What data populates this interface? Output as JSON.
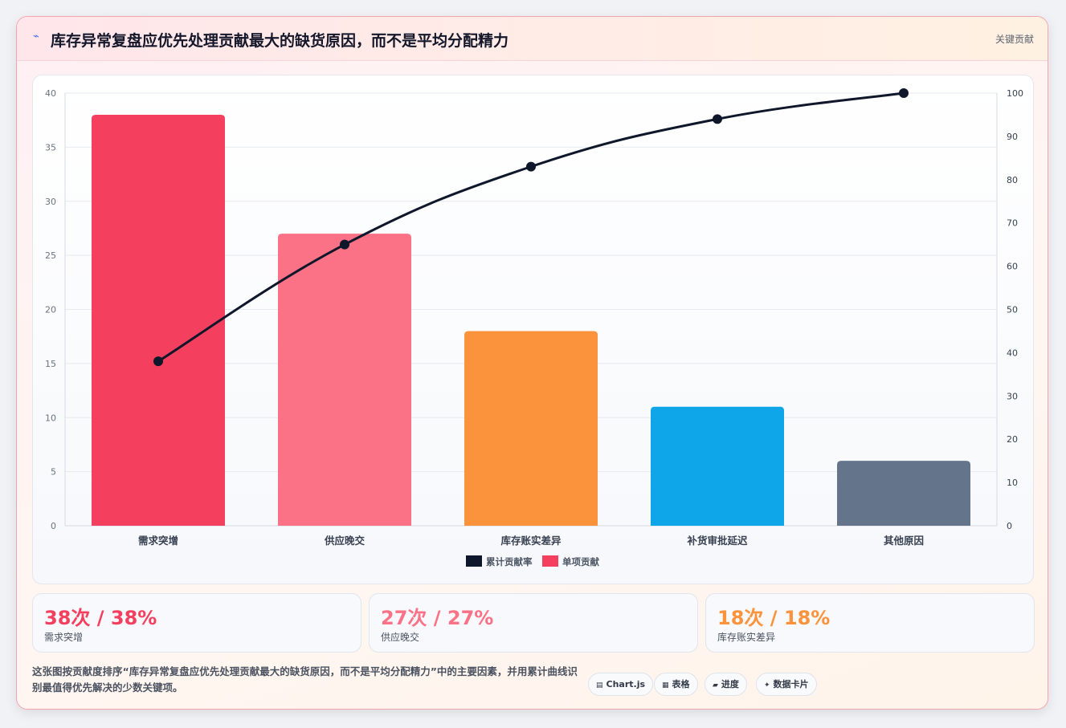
{
  "header": {
    "icon": "lightning-icon",
    "title": "库存异常复盘应优先处理贡献最大的缺货原因，而不是平均分配精力",
    "tag": "关键贡献"
  },
  "colors": {
    "accent_red": "#f43f5e",
    "pink": "#fb7185",
    "orange": "#fb923c",
    "sky": "#0ea5e9",
    "slate": "#64748b",
    "line": "#0f172a"
  },
  "chart_data": {
    "type": "bar",
    "categories": [
      "需求突增",
      "供应晚交",
      "库存账实差异",
      "补货审批延迟",
      "其他原因"
    ],
    "series": [
      {
        "name": "单项贡献",
        "type": "bar",
        "axis": "left",
        "values": [
          38,
          27,
          18,
          11,
          6
        ],
        "colors": [
          "#f43f5e",
          "#fb7185",
          "#fb923c",
          "#0ea5e9",
          "#64748b"
        ]
      },
      {
        "name": "累计贡献率",
        "type": "line",
        "axis": "right",
        "values": [
          38,
          65,
          83,
          94,
          100
        ],
        "color": "#0f172a"
      }
    ],
    "y_left": {
      "min": 0,
      "max": 40,
      "ticks": [
        0,
        5,
        10,
        15,
        20,
        25,
        30,
        35,
        40
      ]
    },
    "y_right": {
      "min": 0,
      "max": 100,
      "ticks": [
        0,
        10,
        20,
        30,
        40,
        50,
        60,
        70,
        80,
        90,
        100
      ]
    },
    "grid": true,
    "legend": {
      "position": "bottom",
      "order": [
        "累计贡献率",
        "单项贡献"
      ]
    }
  },
  "stats": [
    {
      "value": "38次 / 38%",
      "label": "需求突增",
      "color": "#f43f5e"
    },
    {
      "value": "27次 / 27%",
      "label": "供应晚交",
      "color": "#fb7185"
    },
    {
      "value": "18次 / 18%",
      "label": "库存账实差异",
      "color": "#fb923c"
    }
  ],
  "footnote": "这张图按贡献度排序“库存异常复盘应优先处理贡献最大的缺货原因，而不是平均分配精力”中的主要因素，并用累计曲线识别最值得优先解决的少数关键项。",
  "pills": [
    {
      "icon": "chart-icon",
      "glyph": "▤",
      "label": "Chart.js"
    },
    {
      "icon": "table-icon",
      "glyph": "▦",
      "label": "表格"
    },
    {
      "icon": "progress-icon",
      "glyph": "▰",
      "label": "进度"
    },
    {
      "icon": "sparkle-icon",
      "glyph": "✦",
      "label": "数据卡片"
    }
  ]
}
